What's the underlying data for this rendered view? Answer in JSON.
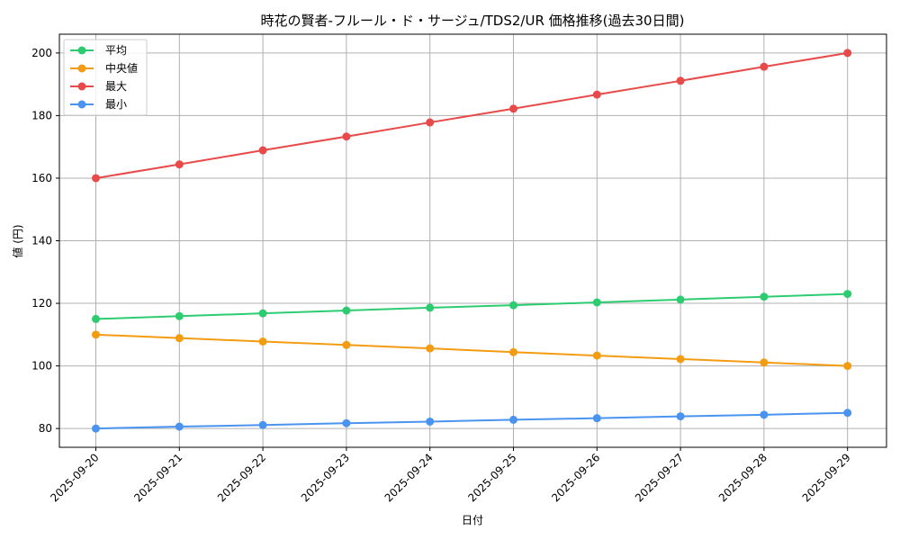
{
  "chart_data": {
    "type": "line",
    "title": "時花の賢者-フルール・ド・サージュ/TDS2/UR 価格推移(過去30日間)",
    "xlabel": "日付",
    "ylabel": "値 (円)",
    "x": [
      "2025-09-20",
      "2025-09-21",
      "2025-09-22",
      "2025-09-23",
      "2025-09-24",
      "2025-09-25",
      "2025-09-26",
      "2025-09-27",
      "2025-09-28",
      "2025-09-29"
    ],
    "ylim": [
      74,
      206
    ],
    "yticks": [
      80,
      100,
      120,
      140,
      160,
      180,
      200
    ],
    "grid": true,
    "legend": "top-left",
    "series": [
      {
        "name": "平均",
        "color": "#2ecc71",
        "values": [
          115,
          115.9,
          116.8,
          117.7,
          118.6,
          119.4,
          120.3,
          121.2,
          122.1,
          123
        ]
      },
      {
        "name": "中央値",
        "color": "#f39c12",
        "values": [
          110,
          108.9,
          107.8,
          106.7,
          105.6,
          104.4,
          103.3,
          102.2,
          101.1,
          100
        ]
      },
      {
        "name": "最大",
        "color": "#e84a4a",
        "values": [
          160,
          164.4,
          168.9,
          173.3,
          177.8,
          182.2,
          186.7,
          191.1,
          195.6,
          200
        ]
      },
      {
        "name": "最小",
        "color": "#4a94f0",
        "values": [
          80,
          80.6,
          81.1,
          81.7,
          82.2,
          82.8,
          83.3,
          83.9,
          84.4,
          85
        ]
      }
    ]
  }
}
